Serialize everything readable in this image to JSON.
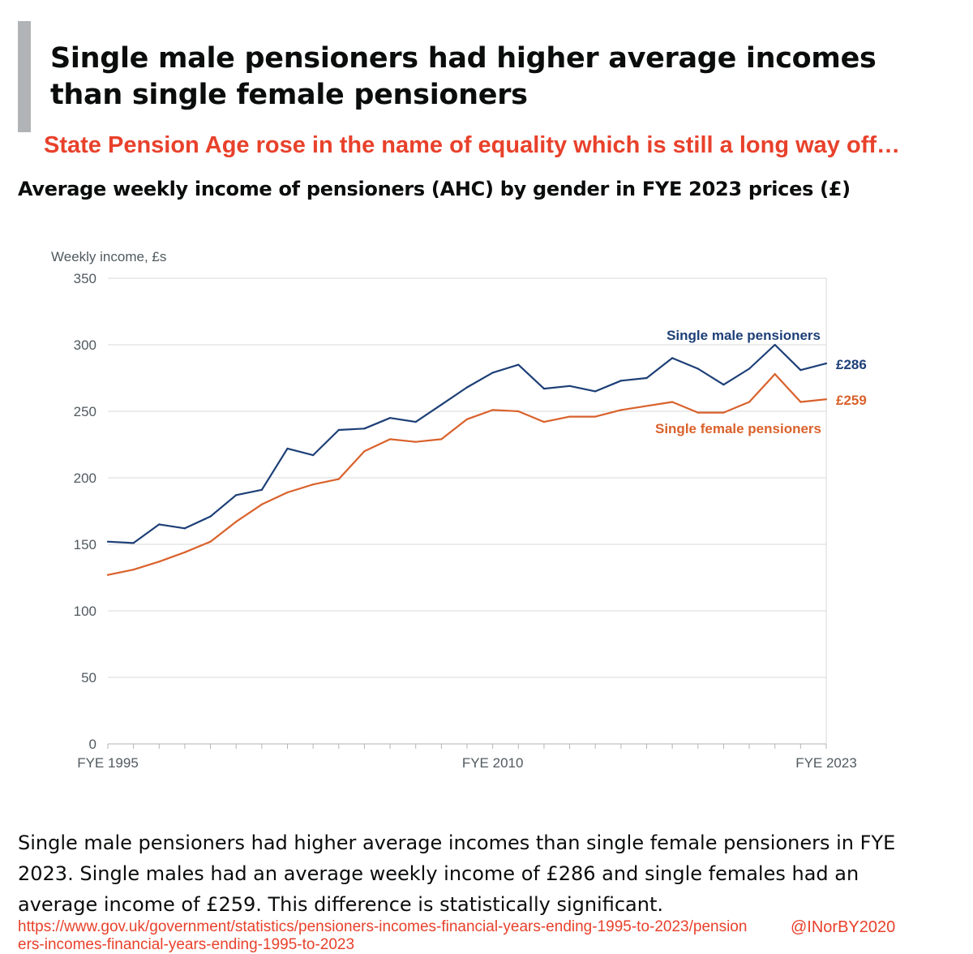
{
  "headline": "Single male pensioners had higher average incomes than single female pensioners",
  "annotation": "State Pension Age rose in the name of equality which is still a long way off…",
  "chart_title": "Average weekly income of pensioners (AHC) by gender in FYE 2023 prices (£)",
  "caption": "Single male pensioners had higher average incomes than single female pensioners in FYE 2023. Single males had an average weekly income of £286 and single females had an average income of £259. This difference is statistically significant.",
  "source_url": "https://www.gov.uk/government/statistics/pensioners-incomes-financial-years-ending-1995-to-2023/pensioners-incomes-financial-years-ending-1995-to-2023",
  "handle": "@INorBY2020",
  "colors": {
    "male": "#1d3f77",
    "female": "#d9612b",
    "annotation": "#e8412b",
    "grid": "#d9d9d9",
    "axis_text": "#505a5f"
  },
  "chart_data": {
    "type": "line",
    "ylabel": "Weekly income, £s",
    "ylim": [
      0,
      350
    ],
    "yticks": [
      0,
      50,
      100,
      150,
      200,
      250,
      300,
      350
    ],
    "x_labels": [
      {
        "index": 0,
        "label": "FYE 1995"
      },
      {
        "index": 15,
        "label": "FYE 2010"
      },
      {
        "index": 28,
        "label": "FYE 2023"
      }
    ],
    "x_count": 29,
    "grid": true,
    "series": [
      {
        "name": "Single male pensioners",
        "end_label": "£286",
        "values": [
          152,
          151,
          165,
          162,
          171,
          187,
          191,
          222,
          217,
          236,
          237,
          245,
          242,
          255,
          268,
          279,
          285,
          267,
          269,
          265,
          273,
          275,
          290,
          282,
          270,
          282,
          300,
          281,
          286
        ]
      },
      {
        "name": "Single female pensioners",
        "end_label": "£259",
        "values": [
          127,
          131,
          137,
          144,
          152,
          167,
          180,
          189,
          195,
          199,
          220,
          229,
          227,
          229,
          244,
          251,
          250,
          242,
          246,
          246,
          251,
          254,
          257,
          249,
          249,
          257,
          278,
          257,
          259
        ]
      }
    ]
  }
}
